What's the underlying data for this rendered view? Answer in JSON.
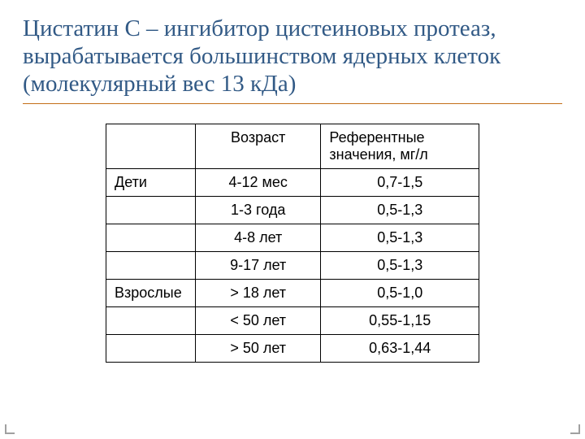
{
  "title": "Цистатин С – ингибитор цистеиновых протеаз, вырабатывается большинством ядерных клеток (молекулярный вес 13 кДа)",
  "table": {
    "header": {
      "group": "",
      "age": "Возраст",
      "values": "Референтные значения, мг/л"
    },
    "rows": [
      {
        "group": "Дети",
        "age": "4-12 мес",
        "value": "0,7-1,5"
      },
      {
        "group": "",
        "age": "1-3 года",
        "value": "0,5-1,3"
      },
      {
        "group": "",
        "age": "4-8 лет",
        "value": "0,5-1,3"
      },
      {
        "group": "",
        "age": "9-17 лет",
        "value": "0,5-1,3"
      },
      {
        "group": "Взрослые",
        "age": "> 18 лет",
        "value": "0,5-1,0"
      },
      {
        "group": "",
        "age": "< 50 лет",
        "value": "0,55-1,15"
      },
      {
        "group": "",
        "age": "> 50 лет",
        "value": "0,63-1,44"
      }
    ]
  },
  "style": {
    "title_color": "#325a86",
    "title_fontsize": 29,
    "title_fontfamily": "Times New Roman",
    "underline_color": "#c46e18",
    "table_font": "Arial",
    "table_fontsize": 18,
    "border_color": "#000000",
    "background_color": "#ffffff",
    "corner_color": "#a0a0a0",
    "slide_width": 720,
    "slide_height": 540
  }
}
